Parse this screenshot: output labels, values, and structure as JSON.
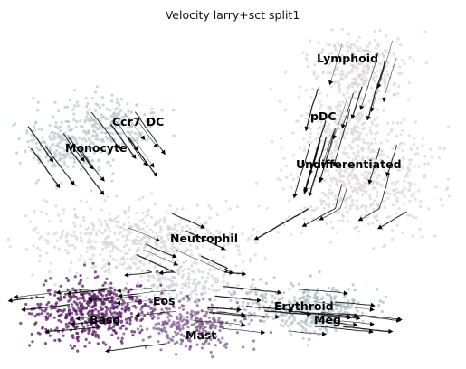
{
  "chart_data": {
    "type": "scatter",
    "title": "Velocity larry+sct split1",
    "xlabel": "",
    "ylabel": "",
    "axes_visible": false,
    "grid": false,
    "overlay": "velocity streamlines with arrowheads",
    "color_legend": "on data",
    "clusters": [
      {
        "name": "Lymphoid",
        "color": "#dcd3d8"
      },
      {
        "name": "pDC",
        "color": "#e0d7db"
      },
      {
        "name": "Undifferentiated",
        "color": "#ddd5da"
      },
      {
        "name": "Ccr7_DC",
        "color": "#b9c9cc"
      },
      {
        "name": "Monocyte",
        "color": "#bccbcf"
      },
      {
        "name": "Neutrophil",
        "color": "#d6d6dc"
      },
      {
        "name": "Eos",
        "color": "#cfd2d8"
      },
      {
        "name": "Baso",
        "color": "#5a1f66"
      },
      {
        "name": "Erythroid",
        "color": "#a9b8c2"
      },
      {
        "name": "Meg",
        "color": "#b4c4cc"
      },
      {
        "name": "Mast",
        "color": "#7f5f8d"
      }
    ]
  }
}
